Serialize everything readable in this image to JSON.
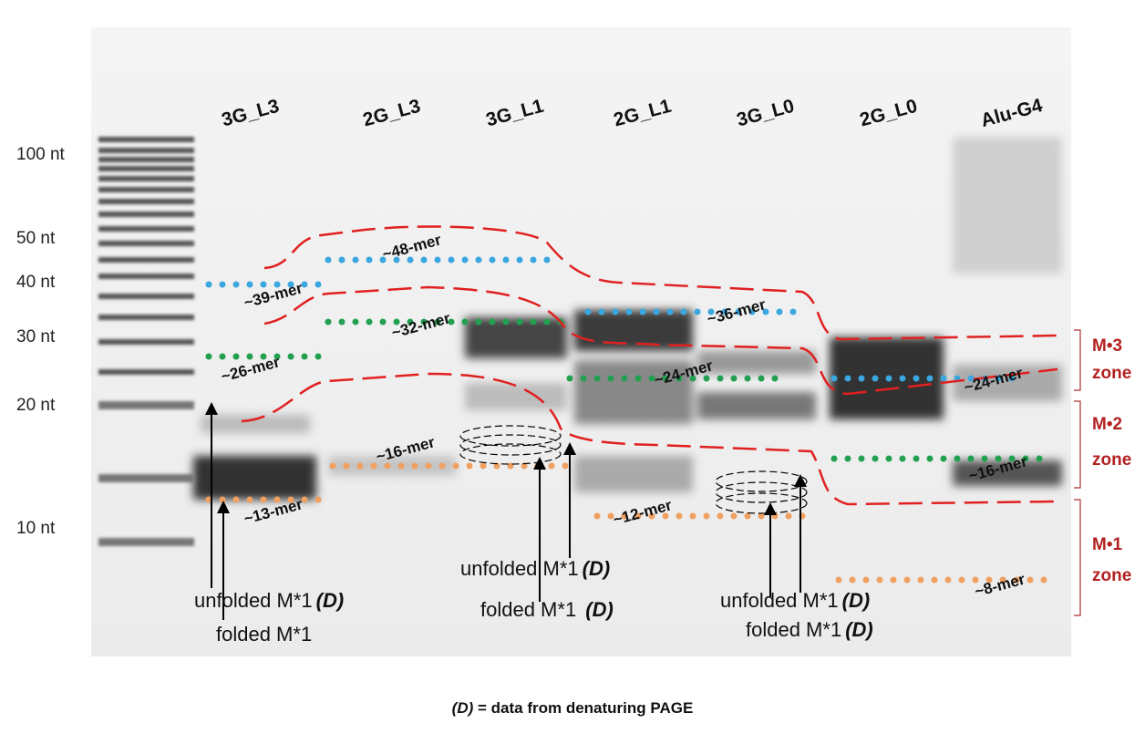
{
  "lanes": [
    "3G_L3",
    "2G_L3",
    "3G_L1",
    "2G_L1",
    "3G_L0",
    "2G_L0",
    "Alu-G4"
  ],
  "ladder": [
    "100 nt",
    "50 nt",
    "40 nt",
    "30 nt",
    "20 nt",
    "10 nt"
  ],
  "mer_labels": [
    "~39-mer",
    "~48-mer",
    "~32-mer",
    "~36-mer",
    "~26-mer",
    "~24-mer",
    "~24-mer",
    "~16-mer",
    "~16-mer",
    "~13-mer",
    "~12-mer",
    "~8-mer"
  ],
  "zones": [
    {
      "name": "M•3",
      "word": "zone"
    },
    {
      "name": "M•2",
      "word": "zone"
    },
    {
      "name": "M•1",
      "word": "zone"
    }
  ],
  "annotations": [
    {
      "text": "unfolded  M*1",
      "tag": "(D)"
    },
    {
      "text": "folded  M*1"
    },
    {
      "text": "unfolded  M*1",
      "tag": "(D)"
    },
    {
      "text": "folded  M*1 ",
      "tag": "(D)"
    },
    {
      "text": "unfolded  M*1",
      "tag": "(D)"
    },
    {
      "text": "folded  M*1",
      "tag": "(D)"
    }
  ],
  "footnote": {
    "tag": "(D)",
    "text": " = data from denaturing PAGE"
  }
}
